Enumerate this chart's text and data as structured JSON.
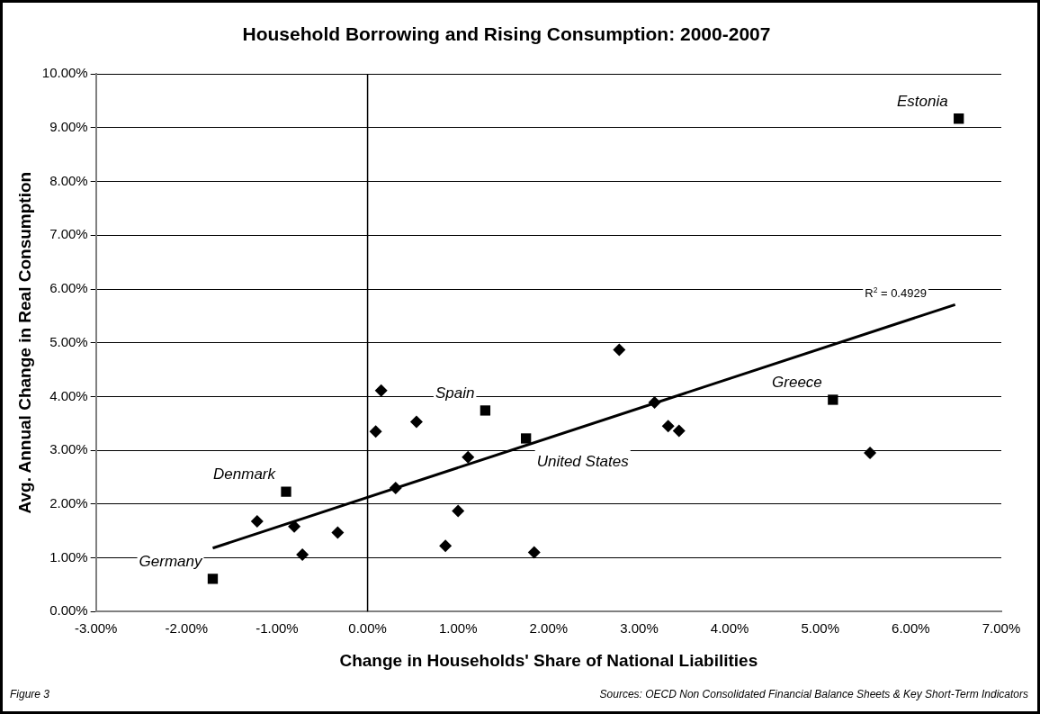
{
  "chart_data": {
    "type": "scatter",
    "title": "Household Borrowing and Rising Consumption: 2000-2007",
    "xlabel": "Change in Households' Share of National Liabilities",
    "ylabel": "Avg. Annual Change in Real Consumption",
    "series": [
      {
        "type": "scatter",
        "marker": "diamond",
        "color": "#000000",
        "x": [
          0.15,
          0.09,
          0.54,
          1.11,
          0.31,
          1.0,
          0.86,
          1.84,
          -1.22,
          -0.81,
          -0.33,
          -0.72,
          2.78,
          3.17,
          3.32,
          3.44,
          5.55
        ],
        "values": [
          4.11,
          3.35,
          3.53,
          2.87,
          2.3,
          1.87,
          1.22,
          1.1,
          1.68,
          1.58,
          1.47,
          1.06,
          4.87,
          3.89,
          3.45,
          3.36,
          2.95
        ]
      },
      {
        "type": "scatter",
        "marker": "square",
        "color": "#000000",
        "x": [
          1.3,
          1.75,
          -0.9,
          -1.71,
          5.14,
          6.53
        ],
        "values": [
          3.74,
          3.22,
          2.23,
          0.61,
          3.94,
          9.17
        ]
      },
      {
        "type": "line",
        "marker": "none",
        "line_style": "solid",
        "color": "#000000",
        "x": [
          -1.71,
          6.49
        ],
        "values": [
          1.18,
          5.71
        ]
      }
    ],
    "xlim": [
      -3,
      7
    ],
    "ylim": [
      0,
      10
    ],
    "xticks": [
      {
        "value": -3,
        "label": "-3.00%"
      },
      {
        "value": -2,
        "label": "-2.00%"
      },
      {
        "value": -1,
        "label": "-1.00%"
      },
      {
        "value": 0,
        "label": "0.00%"
      },
      {
        "value": 1,
        "label": "1.00%"
      },
      {
        "value": 2,
        "label": "2.00%"
      },
      {
        "value": 3,
        "label": "3.00%"
      },
      {
        "value": 4,
        "label": "4.00%"
      },
      {
        "value": 5,
        "label": "5.00%"
      },
      {
        "value": 6,
        "label": "6.00%"
      },
      {
        "value": 7,
        "label": "7.00%"
      }
    ],
    "yticks": [
      {
        "value": 0,
        "label": "0.00%"
      },
      {
        "value": 1,
        "label": "1.00%"
      },
      {
        "value": 2,
        "label": "2.00%"
      },
      {
        "value": 3,
        "label": "3.00%"
      },
      {
        "value": 4,
        "label": "4.00%"
      },
      {
        "value": 5,
        "label": "5.00%"
      },
      {
        "value": 6,
        "label": "6.00%"
      },
      {
        "value": 7,
        "label": "7.00%"
      },
      {
        "value": 8,
        "label": "8.00%"
      },
      {
        "value": 9,
        "label": "9.00%"
      },
      {
        "value": 10,
        "label": "10.00%"
      }
    ],
    "grid": "y",
    "legend": false,
    "ref_lines": [
      {
        "axis": "x",
        "value": 0,
        "color": "#000000"
      }
    ],
    "annotations": [
      {
        "text": "Estonia",
        "x": 6.53,
        "y": 9.17
      },
      {
        "text": "Spain",
        "x": 1.3,
        "y": 3.74
      },
      {
        "text": "Greece",
        "x": 5.14,
        "y": 3.94
      },
      {
        "text": "Denmark",
        "x": -0.9,
        "y": 2.23
      },
      {
        "text": "United States",
        "x": 1.75,
        "y": 3.22
      },
      {
        "text": "Germany",
        "x": -1.71,
        "y": 0.61
      },
      {
        "text": "R$^{2}$ = 0.4929",
        "x": 6.49,
        "y": 5.71
      },
      "Figure 3",
      "Sources: OECD Non Consolidated Financial Balance Sheets & Key Short-Term Indicators"
    ]
  }
}
